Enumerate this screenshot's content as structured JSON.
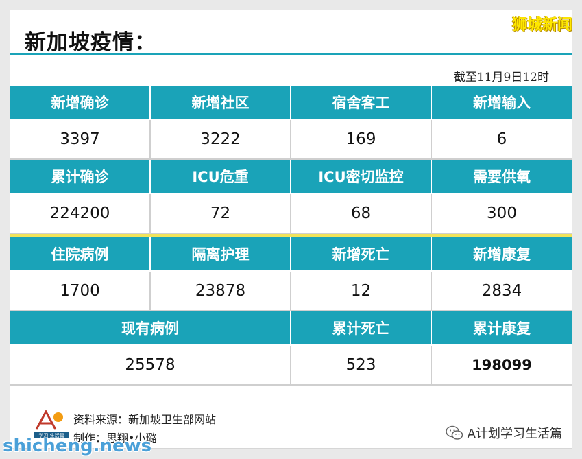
{
  "title": "新加坡疫情：",
  "brand": "狮城新闻",
  "date": "截至11月9日12时",
  "table": {
    "r1_headers": [
      "新增确诊",
      "新增社区",
      "宿舍客工",
      "新增输入"
    ],
    "r1_values": [
      "3397",
      "3222",
      "169",
      "6"
    ],
    "r2_headers": [
      "累计确诊",
      "ICU危重",
      "ICU密切监控",
      "需要供氧"
    ],
    "r2_values": [
      "224200",
      "72",
      "68",
      "300"
    ],
    "r3_headers": [
      "住院病例",
      "隔离护理",
      "新增死亡",
      "新增康复"
    ],
    "r3_values": [
      "1700",
      "23878",
      "12",
      "2834"
    ],
    "r4_headers": [
      "现有病例",
      "累计死亡",
      "累计康复"
    ],
    "r4_values": [
      "25578",
      "523",
      "198099"
    ]
  },
  "footer": {
    "source": "资料来源：新加坡卫生部网站",
    "maker": "制作：思翔•小璐",
    "wechat": "A计划学习生活篇",
    "logo_text": "学习·生活篇"
  },
  "watermark": "shicheng.news",
  "colors": {
    "header": "#1aa3b8",
    "divider": "#f0e35a",
    "brand": "#ffe800"
  }
}
